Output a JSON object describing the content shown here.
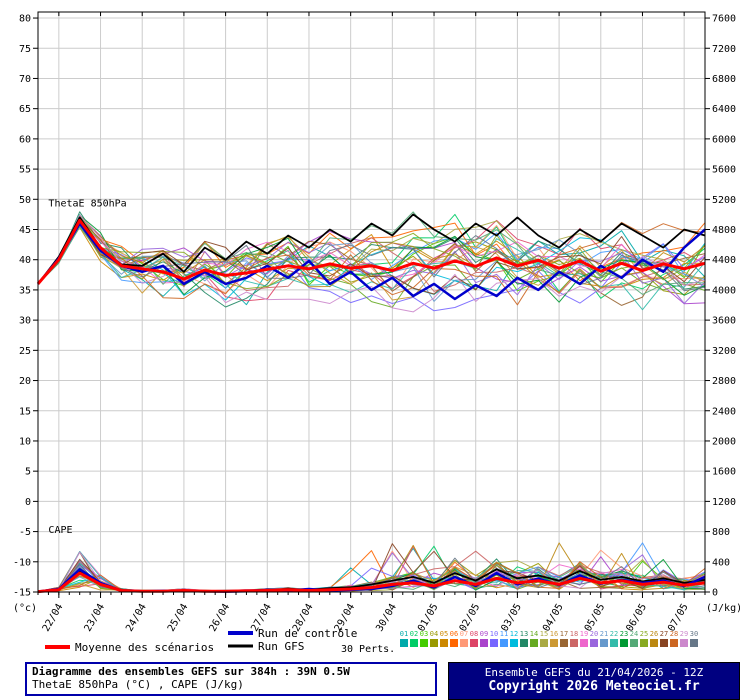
{
  "footer": {
    "title": "Diagramme des ensembles GEFS sur 384h : 39N 0.5W",
    "subtitle": "ThetaE 850hPa (°C) , CAPE (J/kg)",
    "run_info": "Ensemble GEFS du 21/04/2026 - 12Z",
    "copyright": "Copyright 2026 Meteociel.fr"
  },
  "legend": {
    "mean": "Moyenne des scénarios",
    "control": "Run de contrôle",
    "gfs": "Run GFS",
    "perts": "30 Perts.",
    "pert_numbers": [
      "01",
      "02",
      "03",
      "04",
      "05",
      "06",
      "07",
      "08",
      "09",
      "10",
      "11",
      "12",
      "13",
      "14",
      "15",
      "16",
      "17",
      "18",
      "19",
      "20",
      "21",
      "22",
      "23",
      "24",
      "25",
      "26",
      "27",
      "28",
      "29",
      "30"
    ]
  },
  "chart_data": {
    "type": "line",
    "title": "Diagramme des ensembles GEFS sur 384h : 39N 0.5W",
    "x_total_hours": 384,
    "x_step_hours": 12,
    "x_day_labels": [
      {
        "label": "22/04",
        "hour": 12
      },
      {
        "label": "23/04",
        "hour": 36
      },
      {
        "label": "24/04",
        "hour": 60
      },
      {
        "label": "25/04",
        "hour": 84
      },
      {
        "label": "26/04",
        "hour": 108
      },
      {
        "label": "27/04",
        "hour": 132
      },
      {
        "label": "28/04",
        "hour": 156
      },
      {
        "label": "29/04",
        "hour": 180
      },
      {
        "label": "30/04",
        "hour": 204
      },
      {
        "label": "01/05",
        "hour": 228
      },
      {
        "label": "02/05",
        "hour": 252
      },
      {
        "label": "03/05",
        "hour": 276
      },
      {
        "label": "04/05",
        "hour": 300
      },
      {
        "label": "05/05",
        "hour": 324
      },
      {
        "label": "06/05",
        "hour": 348
      },
      {
        "label": "07/05",
        "hour": 372
      }
    ],
    "left_axis": {
      "unit": "(°c)",
      "min": -15,
      "max": 80,
      "step": 5,
      "variable": "ThetaE 850hPa (°C)"
    },
    "right_axis": {
      "unit": "(J/kg)",
      "min": 0,
      "max": 7600,
      "step": 400,
      "variable": "CAPE (J/kg)"
    },
    "in_plot_labels": [
      {
        "text": "ThetaE 850hPa",
        "hour": 6,
        "value": 48.8
      },
      {
        "text": "CAPE",
        "hour": 6,
        "value": -5.2
      }
    ],
    "grid": true,
    "legend_position": "bottom",
    "series": [
      {
        "name": "Moyenne des scénarios",
        "color": "#ff0000",
        "width": 3,
        "thetae": [
          36,
          40,
          46.5,
          42,
          39,
          38.5,
          38,
          36.8,
          38.3,
          37.4,
          37.8,
          38.4,
          39,
          38.5,
          39.3,
          38.6,
          39,
          38.2,
          39.4,
          38.6,
          39.8,
          38.9,
          40.3,
          39,
          39.9,
          38.6,
          39.8,
          38.1,
          39.4,
          38.2,
          39.3,
          38.5,
          39.4
        ],
        "cape": [
          5,
          30,
          250,
          100,
          20,
          10,
          10,
          20,
          10,
          10,
          15,
          20,
          30,
          20,
          30,
          40,
          60,
          100,
          120,
          80,
          150,
          100,
          180,
          120,
          150,
          100,
          180,
          120,
          150,
          100,
          130,
          90,
          120
        ]
      },
      {
        "name": "Run de contrôle",
        "color": "#0000cc",
        "width": 2.5,
        "thetae": [
          36,
          40.2,
          46,
          41.5,
          39,
          38,
          39,
          36,
          38,
          36,
          37,
          39,
          37,
          39.8,
          36,
          38,
          35,
          37,
          34,
          36,
          33.5,
          35.8,
          34,
          37,
          35,
          38,
          36,
          39,
          37,
          40,
          38,
          42,
          45
        ],
        "cape": [
          5,
          40,
          300,
          120,
          20,
          10,
          15,
          10,
          10,
          5,
          10,
          30,
          20,
          40,
          20,
          30,
          40,
          80,
          150,
          60,
          200,
          80,
          250,
          100,
          180,
          90,
          220,
          110,
          160,
          120,
          150,
          80,
          200
        ]
      },
      {
        "name": "Run GFS",
        "color": "#000000",
        "width": 1.8,
        "thetae": [
          36,
          40.5,
          47,
          42,
          39.2,
          39,
          41,
          38,
          42,
          40,
          43,
          41,
          44,
          42,
          45,
          43,
          46,
          44,
          47.5,
          45,
          43,
          46,
          44,
          47,
          44,
          42,
          45,
          43,
          46,
          44,
          42,
          45,
          44
        ],
        "cape": [
          5,
          35,
          280,
          110,
          25,
          10,
          10,
          15,
          10,
          10,
          20,
          25,
          40,
          30,
          50,
          60,
          100,
          150,
          200,
          120,
          250,
          150,
          300,
          180,
          220,
          150,
          280,
          160,
          200,
          140,
          180,
          120,
          160
        ]
      }
    ],
    "ensemble": {
      "count": 30,
      "seed": 1000,
      "thetae_spread": 11,
      "cape_max": 650,
      "colors": [
        "#00aaaa",
        "#00cc66",
        "#44cc00",
        "#999900",
        "#cc8800",
        "#ff6600",
        "#ff9977",
        "#dd4466",
        "#aa44cc",
        "#7766ff",
        "#4499ff",
        "#00bbdd",
        "#228866",
        "#66aa22",
        "#aaaa44",
        "#cc9933",
        "#996633",
        "#cc6666",
        "#ee66cc",
        "#9966dd",
        "#6699cc",
        "#33bbaa",
        "#009933",
        "#55aa77",
        "#88aa22",
        "#bb8811",
        "#884422",
        "#cc6622",
        "#cc88cc",
        "#667788"
      ]
    }
  }
}
